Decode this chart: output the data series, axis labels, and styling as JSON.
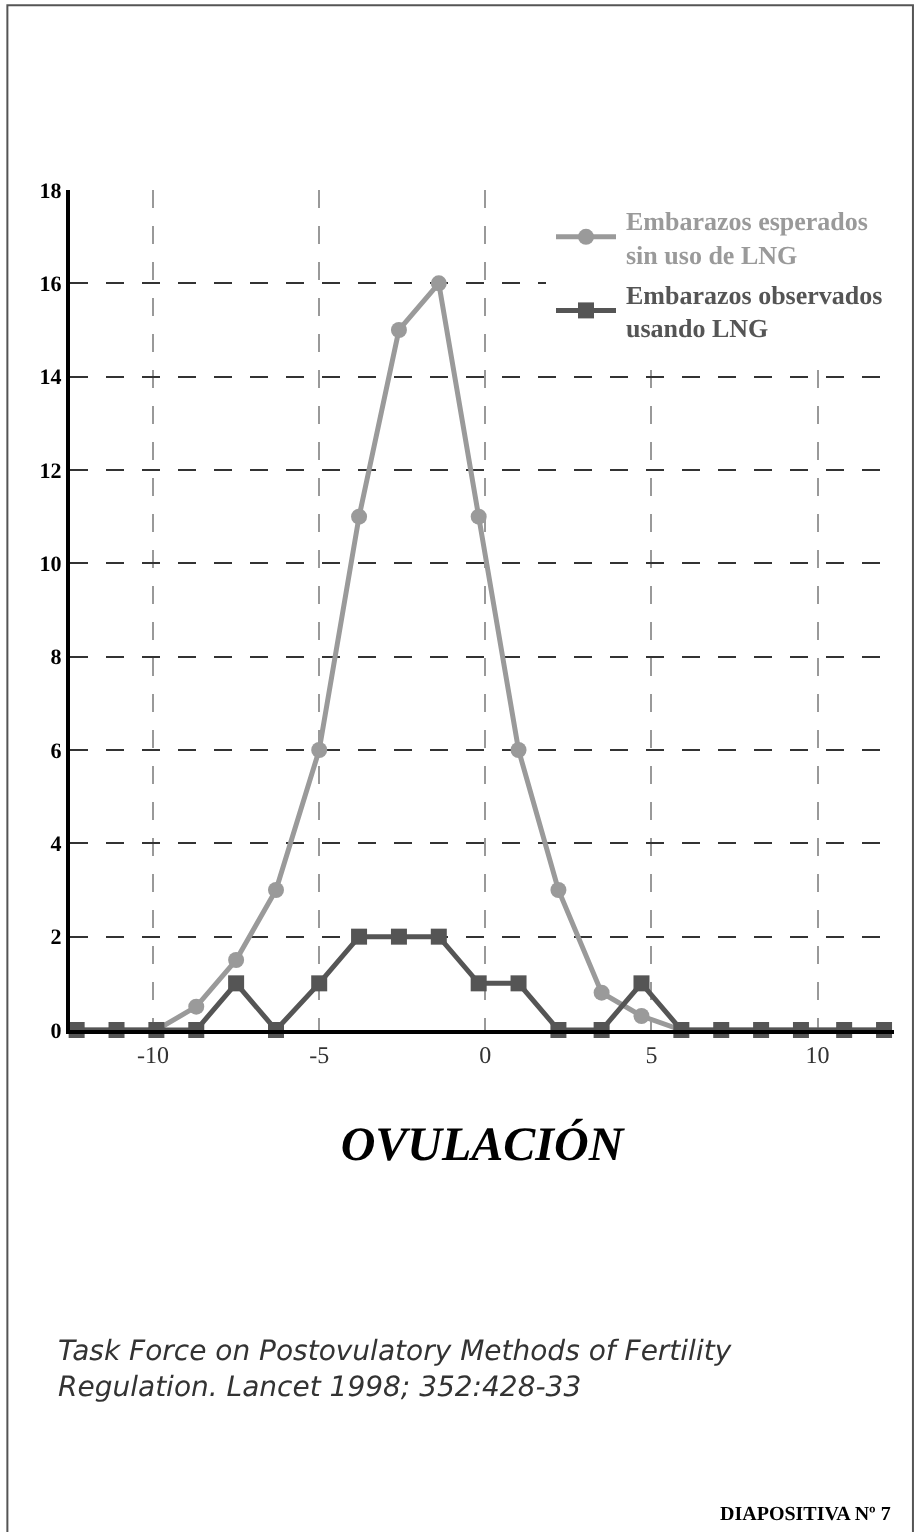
{
  "chart_data": {
    "type": "line",
    "xlabel": "OVULACIÓN",
    "x": [
      -12.3,
      -11.1,
      -9.9,
      -8.7,
      -7.5,
      -6.3,
      -5.0,
      -3.8,
      -2.6,
      -1.4,
      -0.2,
      1.0,
      2.2,
      3.5,
      4.7,
      5.9,
      7.1,
      8.3,
      9.5,
      10.8,
      12.0
    ],
    "series": [
      {
        "name": "Embarazos esperados\nsin uso de LNG",
        "color": "#9a9a9a",
        "marker": "circle",
        "values": [
          0,
          0,
          0,
          0.5,
          1.5,
          3,
          6,
          11,
          15,
          16,
          11,
          6,
          3,
          0.8,
          0.3,
          0,
          0,
          0,
          0,
          0,
          0
        ]
      },
      {
        "name": "Embarazos observados\nusando LNG",
        "color": "#555555",
        "marker": "square",
        "values": [
          0,
          0,
          0,
          0,
          1,
          0,
          1,
          2,
          2,
          2,
          1,
          1,
          0,
          0,
          1,
          0,
          0,
          0,
          0,
          0,
          0
        ]
      }
    ],
    "xlim": [
      -12.5,
      12.3
    ],
    "xticks": [
      -10,
      -5,
      0,
      5,
      10
    ],
    "ylim": [
      0,
      18
    ],
    "yticks": [
      0,
      2,
      4,
      6,
      8,
      10,
      12,
      14,
      16,
      18
    ],
    "grid": true,
    "legend": "top right",
    "line_style": "solid",
    "annotations": [
      "Task Force on Postovulatory Methods of Fertility\nRegulation. Lancet 1998; 352:428-33",
      "DIAPOSITIVA Nº 7"
    ]
  }
}
